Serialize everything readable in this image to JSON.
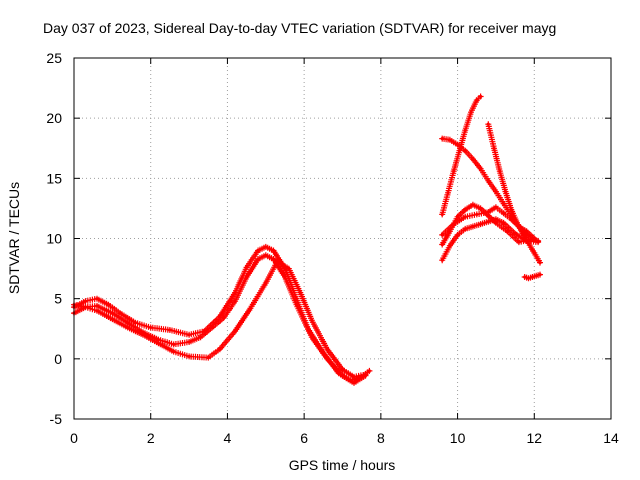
{
  "chart_data": {
    "type": "scatter",
    "title": "Day 037 of 2023, Sidereal Day-to-day VTEC variation (SDTVAR) for receiver mayg",
    "xlabel": "GPS time / hours",
    "ylabel": "SDTVAR / TECUs",
    "xlim": [
      0,
      14
    ],
    "ylim": [
      -5,
      25
    ],
    "xticks": [
      "0",
      "2",
      "4",
      "6",
      "8",
      "10",
      "12",
      "14"
    ],
    "yticks": [
      "-5",
      "0",
      "5",
      "10",
      "15",
      "20",
      "25"
    ],
    "grid": true,
    "marker": "plus",
    "color": "#ff0000",
    "series": [
      {
        "name": "trace-1",
        "x": [
          0.0,
          0.3,
          0.6,
          0.9,
          1.2,
          1.6,
          2.0,
          2.5,
          3.0,
          3.4,
          3.8,
          4.2,
          4.5,
          4.8,
          5.0,
          5.2,
          5.5,
          5.8,
          6.1,
          6.5,
          6.9,
          7.2,
          7.5,
          7.7
        ],
        "y": [
          4.3,
          4.8,
          5.0,
          4.5,
          3.8,
          3.0,
          2.6,
          2.4,
          2.0,
          2.3,
          3.5,
          5.5,
          7.6,
          9.0,
          9.3,
          9.0,
          7.5,
          5.0,
          2.5,
          0.5,
          -1.2,
          -1.8,
          -1.5,
          -1.0
        ]
      },
      {
        "name": "trace-2",
        "x": [
          0.0,
          0.3,
          0.6,
          1.0,
          1.4,
          1.8,
          2.2,
          2.6,
          3.0,
          3.3,
          3.6,
          3.9,
          4.2,
          4.5,
          4.8,
          5.0,
          5.2,
          5.5,
          5.8,
          6.2,
          6.6,
          7.0,
          7.3,
          7.6
        ],
        "y": [
          3.8,
          4.3,
          4.4,
          3.8,
          3.0,
          2.2,
          1.6,
          1.2,
          1.4,
          1.8,
          2.6,
          3.4,
          4.8,
          6.8,
          8.3,
          8.6,
          8.3,
          6.8,
          4.5,
          1.8,
          0.0,
          -1.4,
          -2.0,
          -1.4
        ]
      },
      {
        "name": "trace-3",
        "x": [
          0.0,
          0.3,
          0.6,
          1.0,
          1.4,
          1.8,
          2.2,
          2.6,
          3.0,
          3.5,
          3.8,
          4.2,
          4.6,
          5.0,
          5.3,
          5.6,
          5.9,
          6.2,
          6.6,
          7.0,
          7.3,
          7.6
        ],
        "y": [
          4.5,
          4.3,
          4.0,
          3.3,
          2.6,
          2.0,
          1.3,
          0.6,
          0.2,
          0.1,
          0.8,
          2.3,
          4.2,
          6.3,
          8.1,
          7.5,
          5.5,
          3.2,
          0.8,
          -0.9,
          -1.5,
          -1.3
        ]
      },
      {
        "name": "trace-4",
        "x": [
          9.6,
          9.75,
          9.9,
          10.05,
          10.2,
          10.35,
          10.5,
          10.6
        ],
        "y": [
          12.0,
          13.8,
          15.6,
          17.3,
          19.0,
          20.5,
          21.5,
          21.8
        ]
      },
      {
        "name": "trace-5",
        "x": [
          9.6,
          9.8,
          10.0,
          10.2,
          10.4,
          10.6,
          10.8,
          11.0,
          11.2,
          11.4,
          11.6,
          11.8,
          12.0,
          12.1
        ],
        "y": [
          18.3,
          18.2,
          17.8,
          17.3,
          16.6,
          15.8,
          14.8,
          13.9,
          12.9,
          11.9,
          11.0,
          10.3,
          9.9,
          9.8
        ]
      },
      {
        "name": "trace-6",
        "x": [
          10.8,
          10.95,
          11.1,
          11.25,
          11.4,
          11.55,
          11.7,
          11.85,
          12.0,
          12.15
        ],
        "y": [
          19.5,
          17.5,
          15.6,
          13.9,
          12.4,
          11.3,
          10.4,
          9.6,
          8.8,
          8.0
        ]
      },
      {
        "name": "trace-7",
        "x": [
          9.6,
          9.8,
          10.0,
          10.2,
          10.4,
          10.6,
          10.8,
          11.0,
          11.2,
          11.5,
          11.8,
          12.1
        ],
        "y": [
          8.2,
          9.4,
          10.3,
          10.8,
          11.0,
          11.2,
          11.4,
          11.6,
          11.3,
          10.4,
          9.8,
          9.7
        ]
      },
      {
        "name": "trace-8",
        "x": [
          9.6,
          9.8,
          10.0,
          10.2,
          10.4,
          10.6,
          10.8,
          11.0,
          11.3,
          11.6,
          11.9
        ],
        "y": [
          9.5,
          10.6,
          11.8,
          12.4,
          12.8,
          12.5,
          11.9,
          11.3,
          10.6,
          9.7,
          9.9
        ]
      },
      {
        "name": "trace-9",
        "x": [
          9.6,
          9.9,
          10.2,
          10.5,
          10.8,
          11.0,
          11.2,
          11.4,
          11.6,
          11.8,
          12.0
        ],
        "y": [
          10.3,
          11.2,
          11.8,
          12.0,
          12.2,
          12.6,
          12.1,
          11.6,
          11.0,
          10.6,
          10.0
        ]
      },
      {
        "name": "trace-10",
        "x": [
          11.75,
          11.85,
          11.95,
          12.05,
          12.15
        ],
        "y": [
          6.8,
          6.7,
          6.8,
          6.9,
          7.0
        ]
      }
    ]
  }
}
